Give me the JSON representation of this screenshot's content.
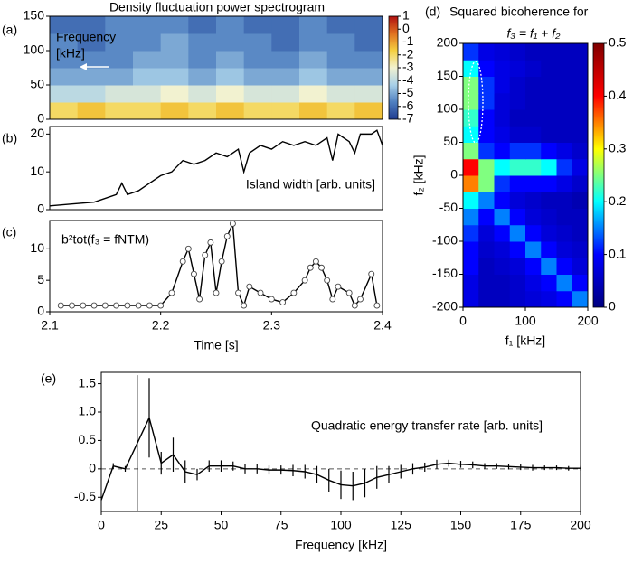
{
  "chart_data": [
    {
      "type": "heatmap",
      "panel_label": "(a)",
      "title": "Density fluctuation power spectrogram",
      "annotation": [
        "Frequency",
        "[kHz]"
      ],
      "xlim": [
        2.1,
        2.4
      ],
      "ylim": [
        0,
        150
      ],
      "yticks": [
        0,
        50,
        100,
        150
      ],
      "zlim": [
        -7,
        1
      ],
      "cticks": [
        1,
        0,
        -1,
        -2,
        -3,
        -4,
        -5,
        -6,
        -7
      ],
      "colors": [
        "#1f3b8f",
        "#4f7fc0",
        "#a8d0e8",
        "#f2f2d0",
        "#f5d040",
        "#e07020",
        "#b01010"
      ],
      "z": [
        [
          -2,
          -1.5,
          -2,
          -2,
          -1.5,
          -2,
          -1.5,
          -2,
          -2,
          -1.5,
          -2,
          -1.5
        ],
        [
          -4,
          -4,
          -3.5,
          -3.5,
          -3,
          -3.5,
          -3,
          -3.5,
          -3.5,
          -3,
          -3.5,
          -3.5
        ],
        [
          -5,
          -5,
          -5,
          -4.5,
          -4.5,
          -5,
          -4.5,
          -5,
          -5,
          -4.5,
          -5,
          -5
        ],
        [
          -5.5,
          -5.5,
          -5.5,
          -5,
          -5,
          -5.5,
          -5,
          -5.5,
          -5.5,
          -5,
          -5.5,
          -5.5
        ],
        [
          -5.5,
          -6,
          -5.5,
          -5.5,
          -5,
          -5.5,
          -5.5,
          -5.5,
          -6,
          -5.5,
          -5.5,
          -6
        ],
        [
          -6,
          -6,
          -5.5,
          -5.5,
          -5.5,
          -6,
          -5.5,
          -6,
          -6,
          -5.5,
          -6,
          -6
        ]
      ]
    },
    {
      "type": "line",
      "panel_label": "(b)",
      "annotation": "Island width [arb. units]",
      "xlim": [
        2.1,
        2.4
      ],
      "ylim": [
        0,
        22
      ],
      "yticks": [
        0,
        10,
        20
      ],
      "color": "#000000",
      "x": [
        2.1,
        2.12,
        2.14,
        2.16,
        2.165,
        2.17,
        2.18,
        2.19,
        2.2,
        2.21,
        2.22,
        2.23,
        2.24,
        2.25,
        2.26,
        2.27,
        2.275,
        2.28,
        2.29,
        2.3,
        2.31,
        2.32,
        2.33,
        2.34,
        2.35,
        2.355,
        2.36,
        2.37,
        2.375,
        2.38,
        2.39,
        2.395,
        2.4
      ],
      "values": [
        1,
        1.5,
        2,
        4,
        7,
        4,
        5,
        7,
        9,
        10,
        13,
        12,
        13,
        15,
        14,
        16,
        10,
        15,
        17,
        16,
        18,
        17,
        18,
        17,
        19,
        13,
        20,
        18,
        15,
        20,
        20,
        21,
        17
      ]
    },
    {
      "type": "line",
      "panel_label": "(c)",
      "annotation": "b²tot(f₃ = fNTM)",
      "markers": true,
      "xlim": [
        2.1,
        2.4
      ],
      "ylim": [
        0,
        14.5
      ],
      "yticks": [
        0,
        5,
        10
      ],
      "xticks": [
        2.1,
        2.2,
        2.3,
        2.4
      ],
      "xlabel": "Time [s]",
      "color": "#000000",
      "x": [
        2.11,
        2.12,
        2.13,
        2.14,
        2.15,
        2.16,
        2.17,
        2.18,
        2.19,
        2.2,
        2.21,
        2.22,
        2.225,
        2.23,
        2.235,
        2.24,
        2.245,
        2.25,
        2.255,
        2.26,
        2.265,
        2.27,
        2.275,
        2.28,
        2.29,
        2.3,
        2.31,
        2.32,
        2.33,
        2.335,
        2.34,
        2.345,
        2.35,
        2.355,
        2.36,
        2.37,
        2.375,
        2.38,
        2.39,
        2.395
      ],
      "values": [
        1,
        1,
        1,
        1,
        1,
        1,
        1,
        1,
        1,
        1,
        3,
        8,
        10,
        6,
        2,
        9,
        11,
        3,
        8,
        12,
        14,
        3,
        1,
        4,
        3,
        2,
        1.5,
        3,
        5,
        7,
        8,
        7,
        5,
        2,
        4,
        3,
        1,
        2,
        6,
        1
      ]
    },
    {
      "type": "heatmap",
      "panel_label": "(d)",
      "title": "Squared bicoherence for",
      "subtitle": "f₃ = f₁ + f₂",
      "xlabel": "f₁ [kHz]",
      "ylabel": "f₂ [kHz]",
      "xlim": [
        0,
        200
      ],
      "ylim": [
        -200,
        200
      ],
      "xticks": [
        0,
        100,
        200
      ],
      "yticks": [
        -200,
        -150,
        -100,
        -50,
        0,
        50,
        100,
        150,
        200
      ],
      "zlim": [
        0,
        0.5
      ],
      "cticks": [
        0,
        0.1,
        0.2,
        0.3,
        0.4,
        0.5
      ],
      "colors": [
        "#00007f",
        "#0000ff",
        "#00ffff",
        "#ffff00",
        "#ff0000",
        "#7f0000"
      ],
      "z": [
        [
          0.08,
          0.05,
          0.05,
          0.06,
          0.07,
          0.08,
          0.1,
          0.15
        ],
        [
          0.08,
          0.05,
          0.05,
          0.06,
          0.08,
          0.1,
          0.15,
          0.1
        ],
        [
          0.1,
          0.05,
          0.06,
          0.07,
          0.1,
          0.15,
          0.1,
          0.07
        ],
        [
          0.1,
          0.06,
          0.07,
          0.1,
          0.15,
          0.1,
          0.07,
          0.06
        ],
        [
          0.12,
          0.07,
          0.1,
          0.15,
          0.1,
          0.07,
          0.06,
          0.05
        ],
        [
          0.15,
          0.1,
          0.15,
          0.1,
          0.07,
          0.06,
          0.05,
          0.05
        ],
        [
          0.2,
          0.15,
          0.1,
          0.07,
          0.06,
          0.05,
          0.05,
          0.04
        ],
        [
          0.35,
          0.25,
          0.12,
          0.1,
          0.1,
          0.1,
          0.08,
          0.06
        ],
        [
          0.4,
          0.25,
          0.2,
          0.22,
          0.22,
          0.2,
          0.12,
          0.08
        ],
        [
          0.25,
          0.12,
          0.1,
          0.12,
          0.12,
          0.1,
          0.08,
          0.06
        ],
        [
          0.2,
          0.1,
          0.08,
          0.06,
          0.06,
          0.05,
          0.05,
          0.05
        ],
        [
          0.22,
          0.1,
          0.07,
          0.05,
          0.05,
          0.05,
          0.05,
          0.05
        ],
        [
          0.25,
          0.12,
          0.07,
          0.06,
          0.05,
          0.05,
          0.05,
          0.05
        ],
        [
          0.25,
          0.12,
          0.08,
          0.06,
          0.05,
          0.05,
          0.05,
          0.05
        ],
        [
          0.2,
          0.1,
          0.08,
          0.07,
          0.06,
          0.05,
          0.05,
          0.05
        ],
        [
          0.12,
          0.08,
          0.07,
          0.06,
          0.05,
          0.05,
          0.05,
          0.05
        ]
      ]
    },
    {
      "type": "line",
      "panel_label": "(e)",
      "annotation": "Quadratic energy transfer rate [arb. units]",
      "xlabel": "Frequency [kHz]",
      "color": "#000000",
      "reference_line": 0,
      "xlim": [
        0,
        200
      ],
      "ylim": [
        -0.75,
        1.7
      ],
      "xticks": [
        0,
        25,
        50,
        75,
        100,
        125,
        150,
        175,
        200
      ],
      "yticks": [
        -0.5,
        0,
        0.5,
        {
          "value": 1,
          "label": "1.0"
        },
        1.5
      ],
      "x": [
        0,
        5,
        10,
        15,
        20,
        25,
        30,
        35,
        40,
        45,
        50,
        55,
        60,
        65,
        70,
        75,
        80,
        85,
        90,
        95,
        100,
        105,
        110,
        115,
        120,
        125,
        130,
        135,
        140,
        145,
        150,
        155,
        160,
        165,
        170,
        175,
        180,
        185,
        190,
        195,
        200
      ],
      "values": [
        -0.55,
        0.05,
        0,
        0.45,
        0.9,
        0.1,
        0.25,
        -0.05,
        -0.1,
        0.05,
        0.05,
        0.05,
        0,
        0,
        -0.02,
        -0.02,
        -0.03,
        -0.05,
        -0.1,
        -0.2,
        -0.28,
        -0.3,
        -0.25,
        -0.15,
        -0.1,
        -0.05,
        0,
        0.03,
        0.08,
        0.1,
        0.08,
        0.07,
        0.05,
        0.05,
        0.04,
        0.03,
        0.02,
        0.02,
        0.02,
        0.01,
        0.01
      ],
      "errors": [
        null,
        0.05,
        0.05,
        1.2,
        0.7,
        0.2,
        0.3,
        0.2,
        0.1,
        0.1,
        0.1,
        0.08,
        0.08,
        0.08,
        0.08,
        0.08,
        0.1,
        0.12,
        0.15,
        0.2,
        0.25,
        0.25,
        0.25,
        0.2,
        0.15,
        0.12,
        0.1,
        0.08,
        0.08,
        0.06,
        0.06,
        0.06,
        0.05,
        0.05,
        0.05,
        0.05,
        0.05,
        0.04,
        0.04,
        0.04,
        0.04
      ]
    }
  ]
}
